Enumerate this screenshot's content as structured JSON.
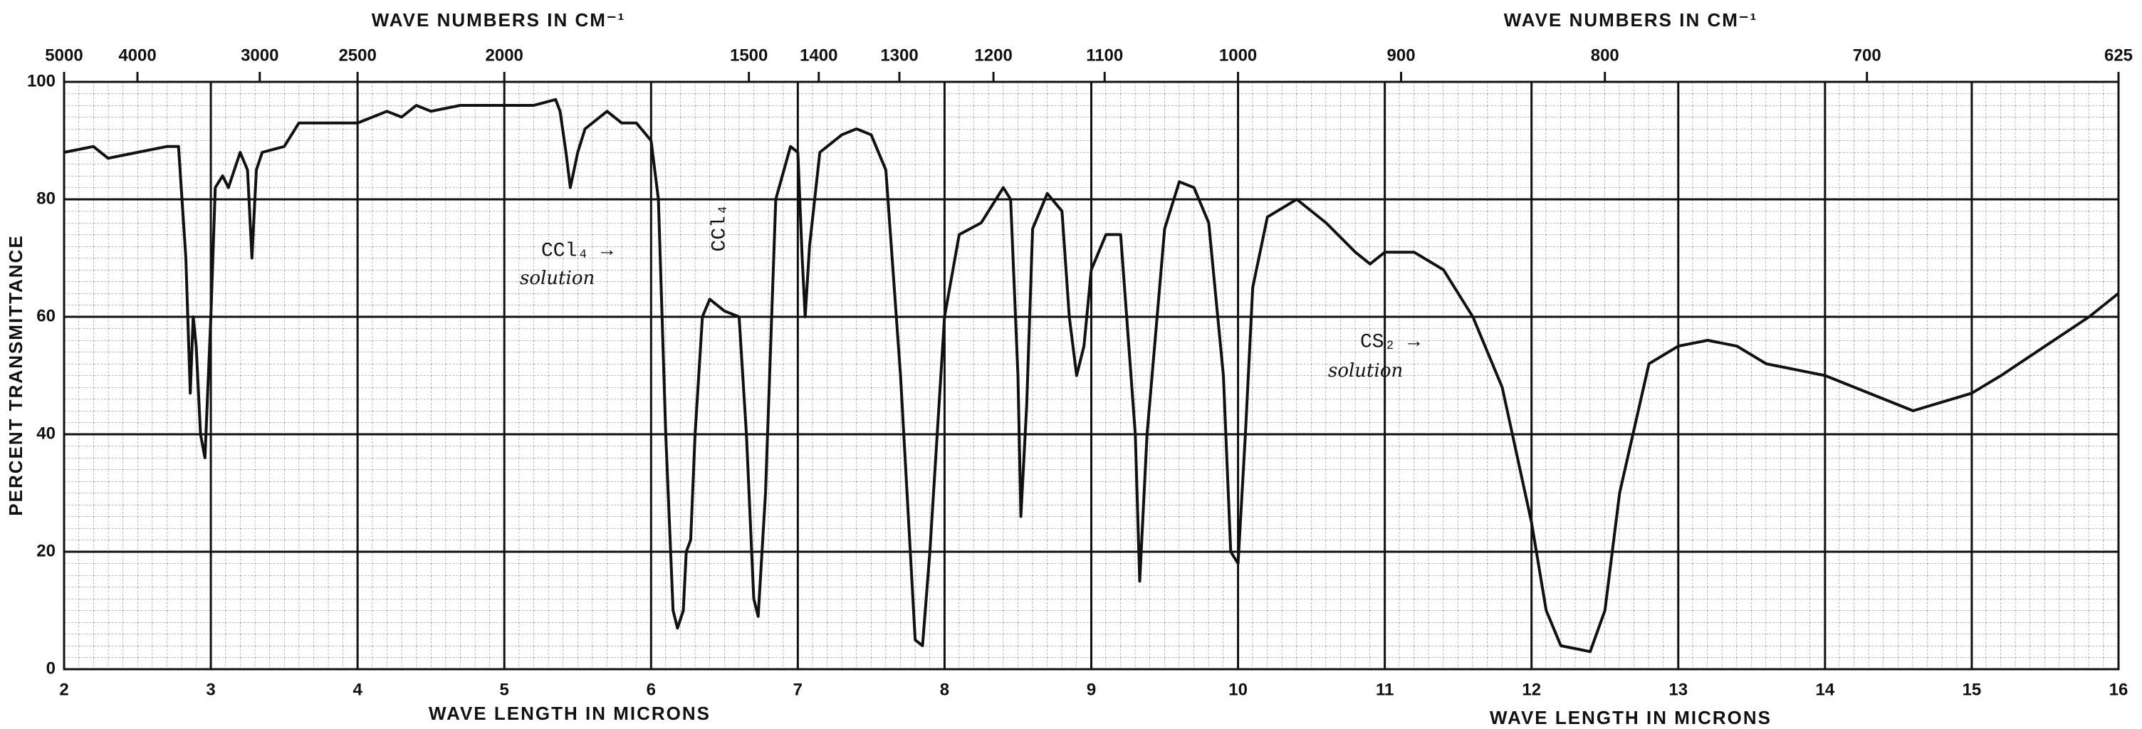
{
  "chart_data": {
    "type": "line",
    "x_label": "WAVE LENGTH IN MICRONS",
    "x_label_right": "WAVE LENGTH IN MICRONS",
    "x2_label": "WAVE NUMBERS IN CM⁻¹",
    "x2_label_right": "WAVE NUMBERS IN CM⁻¹",
    "y_label": "PERCENT TRANSMITTANCE",
    "annotations": [
      "CCl₄ →",
      "solution",
      "CCl₄",
      "CS₂ →",
      "solution"
    ],
    "xlim": [
      2,
      16
    ],
    "xticks": [
      2,
      3,
      4,
      5,
      6,
      7,
      8,
      9,
      10,
      11,
      12,
      13,
      14,
      15,
      16
    ],
    "x2ticks": [
      5000,
      4000,
      3000,
      2500,
      2000,
      1500,
      1400,
      1300,
      1200,
      1100,
      1000,
      900,
      800,
      700,
      625
    ],
    "ylim": [
      0,
      100
    ],
    "yticks": [
      0,
      20,
      40,
      60,
      80,
      100
    ],
    "grid": true,
    "series": [
      {
        "color": "#111111",
        "x": [
          2.0,
          2.2,
          2.3,
          2.5,
          2.7,
          2.78,
          2.83,
          2.86,
          2.88,
          2.9,
          2.93,
          2.96,
          3.0,
          3.03,
          3.08,
          3.12,
          3.2,
          3.25,
          3.28,
          3.31,
          3.35,
          3.5,
          3.6,
          3.8,
          4.0,
          4.2,
          4.3,
          4.4,
          4.5,
          4.7,
          5.0,
          5.2,
          5.35,
          5.38,
          5.42,
          5.45,
          5.5,
          5.55,
          5.7,
          5.8,
          5.9,
          6.0,
          6.05,
          6.1,
          6.15,
          6.18,
          6.22,
          6.24,
          6.27,
          6.3,
          6.35,
          6.4,
          6.5,
          6.6,
          6.65,
          6.7,
          6.73,
          6.78,
          6.85,
          6.95,
          7.0,
          7.03,
          7.05,
          7.08,
          7.15,
          7.3,
          7.4,
          7.5,
          7.6,
          7.7,
          7.8,
          7.85,
          7.9,
          8.0,
          8.1,
          8.25,
          8.4,
          8.45,
          8.5,
          8.52,
          8.56,
          8.6,
          8.7,
          8.8,
          8.85,
          8.9,
          8.95,
          9.0,
          9.1,
          9.2,
          9.3,
          9.33,
          9.38,
          9.5,
          9.6,
          9.7,
          9.8,
          9.9,
          9.95,
          10.0,
          10.05,
          10.1,
          10.2,
          10.4,
          10.6,
          10.8,
          10.9,
          11.0,
          11.2,
          11.4,
          11.6,
          11.8,
          12.0,
          12.1,
          12.2,
          12.4,
          12.5,
          12.6,
          12.8,
          13.0,
          13.2,
          13.4,
          13.6,
          14.0,
          14.4,
          14.6,
          15.0,
          15.2,
          15.5,
          15.8,
          16.0
        ],
        "values": [
          88,
          89,
          87,
          88,
          89,
          89,
          70,
          47,
          60,
          55,
          40,
          36,
          60,
          82,
          84,
          82,
          88,
          85,
          70,
          85,
          88,
          89,
          93,
          93,
          93,
          95,
          94,
          96,
          95,
          96,
          96,
          96,
          97,
          95,
          88,
          82,
          88,
          92,
          95,
          93,
          93,
          90,
          80,
          40,
          10,
          7,
          10,
          20,
          22,
          40,
          60,
          63,
          61,
          60,
          40,
          12,
          9,
          30,
          80,
          89,
          88,
          70,
          60,
          72,
          88,
          91,
          92,
          91,
          85,
          50,
          5,
          4,
          20,
          60,
          74,
          76,
          82,
          80,
          50,
          26,
          45,
          75,
          81,
          78,
          60,
          50,
          55,
          68,
          74,
          74,
          40,
          15,
          40,
          75,
          83,
          82,
          76,
          50,
          20,
          18,
          40,
          65,
          77,
          80,
          76,
          71,
          69,
          71,
          71,
          68,
          60,
          48,
          25,
          10,
          4,
          3,
          10,
          30,
          52,
          55,
          56,
          55,
          52,
          50,
          46,
          44,
          47,
          50,
          55,
          60,
          64
        ]
      }
    ]
  }
}
